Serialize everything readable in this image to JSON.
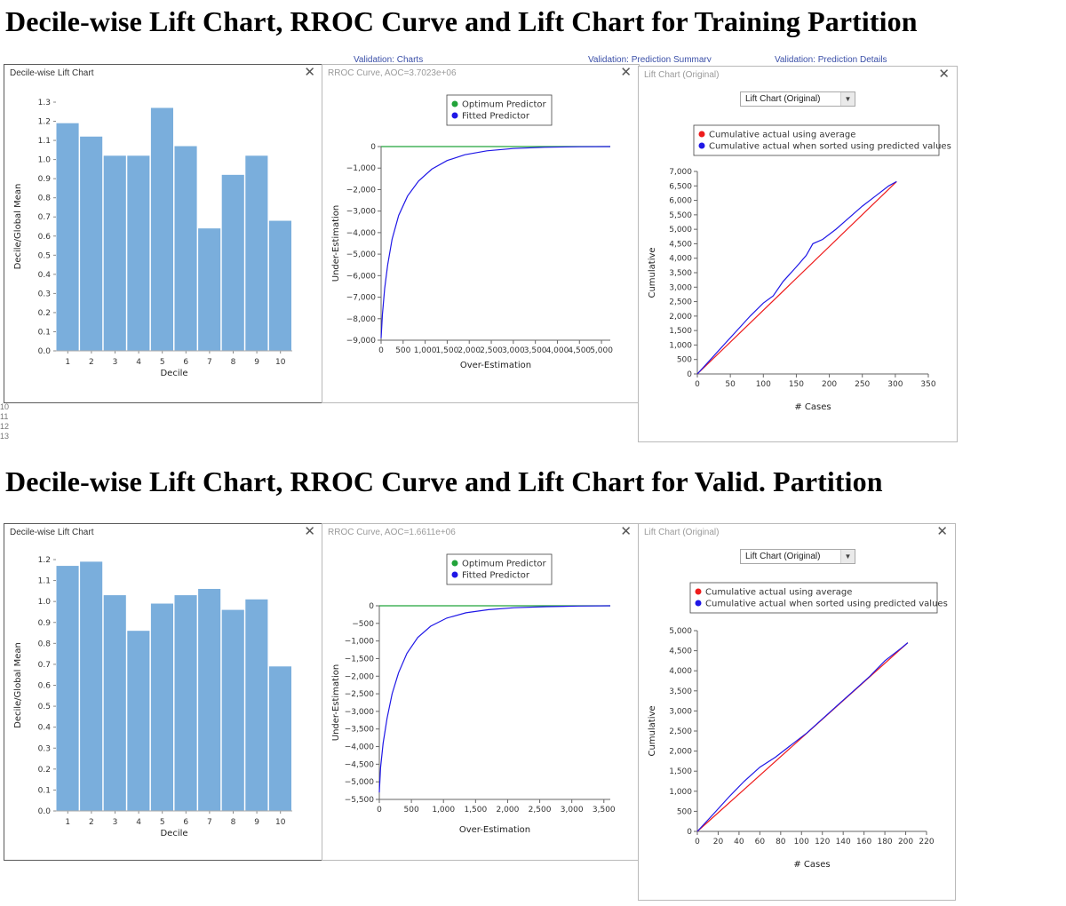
{
  "headings": {
    "training": "Decile-wise Lift Chart, RROC Curve and Lift Chart for Training Partition",
    "validation": "Decile-wise Lift Chart, RROC Curve and Lift Chart for Valid. Partition"
  },
  "background_tabs": {
    "a": "Validation: Charts",
    "b": "Validation: Prediction Summary",
    "c": "Validation: Prediction Details"
  },
  "row_numbers": [
    "10",
    "11",
    "12",
    "13"
  ],
  "colors": {
    "bar": "#7aaedc",
    "optimum": "#22a33a",
    "fitted": "#1f17e6",
    "average": "#ee1c1c"
  },
  "training": {
    "decile": {
      "title": "Decile-wise Lift Chart",
      "close": "✕",
      "chart_data": {
        "type": "bar",
        "categories": [
          "1",
          "2",
          "3",
          "4",
          "5",
          "6",
          "7",
          "8",
          "9",
          "10"
        ],
        "values": [
          1.19,
          1.12,
          1.02,
          1.02,
          1.27,
          1.07,
          0.64,
          0.92,
          1.02,
          0.68
        ],
        "xlabel": "Decile",
        "ylabel": "Decile/Global Mean",
        "ylim": [
          0,
          1.3
        ],
        "yticks": [
          "0.0",
          "0.1",
          "0.2",
          "0.3",
          "0.4",
          "0.5",
          "0.6",
          "0.7",
          "0.8",
          "0.9",
          "1.0",
          "1.1",
          "1.2",
          "1.3"
        ]
      }
    },
    "rroc": {
      "title": "RROC Curve, AOC=3.7023e+06",
      "close": "✕",
      "chart_data": {
        "type": "line",
        "xlabel": "Over-Estimation",
        "ylabel": "Under-Estimation",
        "xlim": [
          0,
          5200
        ],
        "ylim": [
          -9000,
          0
        ],
        "xticks": [
          "0",
          "500",
          "1,000",
          "1,500",
          "2,000",
          "2,500",
          "3,000",
          "3,500",
          "4,000",
          "4,500",
          "5,000"
        ],
        "yticks": [
          "0",
          "−1,000",
          "−2,000",
          "−3,000",
          "−4,000",
          "−5,000",
          "−6,000",
          "−7,000",
          "−8,000",
          "−9,000"
        ],
        "series": [
          {
            "name": "Optimum Predictor",
            "x": [
              0,
              5200
            ],
            "y": [
              0,
              0
            ]
          },
          {
            "name": "Fitted Predictor",
            "x": [
              0,
              30,
              80,
              150,
              250,
              400,
              600,
              850,
              1150,
              1500,
              1900,
              2400,
              3000,
              3700,
              4500,
              5200
            ],
            "y": [
              -8900,
              -7800,
              -6600,
              -5500,
              -4300,
              -3200,
              -2300,
              -1600,
              -1050,
              -650,
              -380,
              -200,
              -90,
              -35,
              -10,
              0
            ]
          }
        ],
        "legend": "top-center"
      }
    },
    "lift": {
      "title": "Lift Chart (Original)",
      "close": "✕",
      "dropdown_label": "Lift Chart (Original)",
      "dropdown_arrow": "▼",
      "chart_data": {
        "type": "line",
        "xlabel": "# Cases",
        "ylabel": "Cumulative",
        "xlim": [
          0,
          350
        ],
        "ylim": [
          0,
          7000
        ],
        "xticks": [
          "0",
          "50",
          "100",
          "150",
          "200",
          "250",
          "300",
          "350"
        ],
        "yticks": [
          "0",
          "500",
          "1,000",
          "1,500",
          "2,000",
          "2,500",
          "3,000",
          "3,500",
          "4,000",
          "4,500",
          "5,000",
          "5,500",
          "6,000",
          "6,500",
          "7,000"
        ],
        "series": [
          {
            "name": "Cumulative actual using average",
            "x": [
              0,
              302
            ],
            "y": [
              0,
              6650
            ]
          },
          {
            "name": "Cumulative actual when sorted using predicted values",
            "x": [
              0,
              20,
              40,
              60,
              80,
              100,
              115,
              130,
              150,
              165,
              175,
              190,
              210,
              230,
              250,
              270,
              290,
              302
            ],
            "y": [
              0,
              500,
              1000,
              1500,
              2000,
              2450,
              2700,
              3200,
              3700,
              4100,
              4500,
              4650,
              5000,
              5400,
              5800,
              6150,
              6500,
              6650
            ]
          }
        ],
        "legend": "top"
      }
    }
  },
  "validation": {
    "decile": {
      "title": "Decile-wise Lift Chart",
      "close": "✕",
      "chart_data": {
        "type": "bar",
        "categories": [
          "1",
          "2",
          "3",
          "4",
          "5",
          "6",
          "7",
          "8",
          "9",
          "10"
        ],
        "values": [
          1.17,
          1.19,
          1.03,
          0.86,
          0.99,
          1.03,
          1.06,
          0.96,
          1.01,
          0.69
        ],
        "xlabel": "Decile",
        "ylabel": "Decile/Global Mean",
        "ylim": [
          0,
          1.2
        ],
        "yticks": [
          "0.0",
          "0.1",
          "0.2",
          "0.3",
          "0.4",
          "0.5",
          "0.6",
          "0.7",
          "0.8",
          "0.9",
          "1.0",
          "1.1",
          "1.2"
        ]
      }
    },
    "rroc": {
      "title": "RROC Curve, AOC=1.6611e+06",
      "close": "✕",
      "chart_data": {
        "type": "line",
        "xlabel": "Over-Estimation",
        "ylabel": "Under-Estimation",
        "xlim": [
          0,
          3600
        ],
        "ylim": [
          -5500,
          0
        ],
        "xticks": [
          "0",
          "500",
          "1,000",
          "1,500",
          "2,000",
          "2,500",
          "3,000",
          "3,500"
        ],
        "yticks": [
          "0",
          "−500",
          "−1,000",
          "−1,500",
          "−2,000",
          "−2,500",
          "−3,000",
          "−3,500",
          "−4,000",
          "−4,500",
          "−5,000",
          "−5,500"
        ],
        "series": [
          {
            "name": "Optimum Predictor",
            "x": [
              0,
              3600
            ],
            "y": [
              0,
              0
            ]
          },
          {
            "name": "Fitted Predictor",
            "x": [
              0,
              20,
              60,
              120,
              200,
              300,
              430,
              600,
              800,
              1050,
              1350,
              1700,
              2100,
              2600,
              3100,
              3600
            ],
            "y": [
              -5300,
              -4600,
              -3900,
              -3200,
              -2500,
              -1900,
              -1350,
              -900,
              -580,
              -350,
              -200,
              -110,
              -55,
              -25,
              -8,
              0
            ]
          }
        ],
        "legend": "top-center"
      }
    },
    "lift": {
      "title": "Lift Chart (Original)",
      "close": "✕",
      "dropdown_label": "Lift Chart (Original)",
      "dropdown_arrow": "▼",
      "chart_data": {
        "type": "line",
        "xlabel": "# Cases",
        "ylabel": "Cumulative",
        "xlim": [
          0,
          220
        ],
        "ylim": [
          0,
          5000
        ],
        "xticks": [
          "0",
          "20",
          "40",
          "60",
          "80",
          "100",
          "120",
          "140",
          "160",
          "180",
          "200",
          "220"
        ],
        "yticks": [
          "0",
          "500",
          "1,000",
          "1,500",
          "2,000",
          "2,500",
          "3,000",
          "3,500",
          "4,000",
          "4,500",
          "5,000"
        ],
        "series": [
          {
            "name": "Cumulative actual using average",
            "x": [
              0,
              202
            ],
            "y": [
              0,
              4700
            ]
          },
          {
            "name": "Cumulative actual when sorted using predicted values",
            "x": [
              0,
              15,
              30,
              45,
              60,
              75,
              90,
              105,
              120,
              135,
              150,
              165,
              180,
              195,
              202
            ],
            "y": [
              0,
              420,
              850,
              1250,
              1600,
              1850,
              2150,
              2450,
              2800,
              3150,
              3500,
              3850,
              4250,
              4550,
              4700
            ]
          }
        ],
        "legend": "top"
      }
    }
  }
}
